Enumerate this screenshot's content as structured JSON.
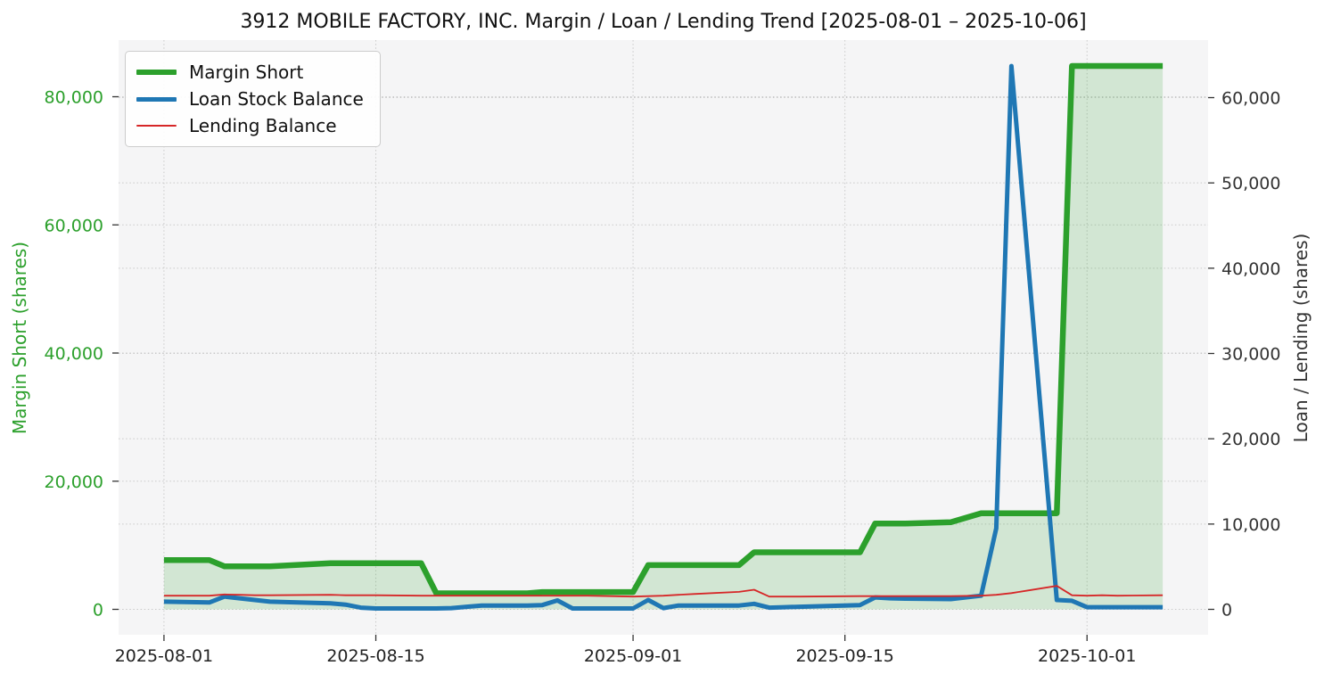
{
  "chart_data": {
    "type": "line",
    "title": "3912 MOBILE FACTORY, INC. Margin / Loan / Lending Trend [2025-08-01 – 2025-10-06]",
    "x": [
      "2025-08-01",
      "2025-08-04",
      "2025-08-05",
      "2025-08-06",
      "2025-08-07",
      "2025-08-08",
      "2025-08-12",
      "2025-08-13",
      "2025-08-14",
      "2025-08-15",
      "2025-08-18",
      "2025-08-19",
      "2025-08-20",
      "2025-08-21",
      "2025-08-22",
      "2025-08-25",
      "2025-08-26",
      "2025-08-27",
      "2025-08-28",
      "2025-08-29",
      "2025-09-01",
      "2025-09-02",
      "2025-09-03",
      "2025-09-04",
      "2025-09-05",
      "2025-09-08",
      "2025-09-09",
      "2025-09-10",
      "2025-09-11",
      "2025-09-12",
      "2025-09-16",
      "2025-09-17",
      "2025-09-18",
      "2025-09-19",
      "2025-09-22",
      "2025-09-24",
      "2025-09-25",
      "2025-09-26",
      "2025-09-29",
      "2025-09-30",
      "2025-10-01",
      "2025-10-02",
      "2025-10-03",
      "2025-10-06"
    ],
    "series": [
      {
        "name": "Margin Short",
        "axis": "left",
        "color": "#2ca02c",
        "line_width": 6.5,
        "fill": true,
        "fill_alpha": 0.17,
        "values": [
          7700,
          7700,
          6700,
          6700,
          6700,
          6700,
          7200,
          7200,
          7200,
          7200,
          7200,
          2500,
          2500,
          2500,
          2500,
          2500,
          2700,
          2700,
          2700,
          2700,
          2700,
          6900,
          6900,
          6900,
          6900,
          6900,
          8900,
          8900,
          8900,
          8900,
          8900,
          13400,
          13400,
          13400,
          13600,
          15000,
          15000,
          15000,
          15000,
          84800,
          84800,
          84800,
          84800,
          84800
        ]
      },
      {
        "name": "Loan Stock Balance",
        "axis": "right",
        "color": "#1f77b4",
        "line_width": 5,
        "fill": false,
        "values": [
          900,
          800,
          1500,
          1300,
          1100,
          900,
          700,
          550,
          200,
          100,
          100,
          100,
          150,
          300,
          450,
          450,
          500,
          1050,
          100,
          100,
          100,
          1100,
          150,
          450,
          450,
          450,
          650,
          200,
          250,
          300,
          500,
          1400,
          1300,
          1250,
          1200,
          1600,
          9500,
          63700,
          1100,
          1000,
          250,
          250,
          250,
          250
        ]
      },
      {
        "name": "Lending Balance",
        "axis": "right",
        "color": "#d62728",
        "line_width": 1.8,
        "fill": false,
        "values": [
          1600,
          1600,
          1750,
          1700,
          1650,
          1650,
          1700,
          1650,
          1650,
          1650,
          1600,
          1600,
          1600,
          1600,
          1600,
          1600,
          1600,
          1600,
          1600,
          1600,
          1500,
          1550,
          1600,
          1700,
          1800,
          2050,
          2300,
          1500,
          1500,
          1500,
          1550,
          1550,
          1550,
          1550,
          1550,
          1600,
          1700,
          1900,
          2750,
          1650,
          1600,
          1650,
          1600,
          1650
        ]
      }
    ],
    "left_axis": {
      "label": "Margin Short (shares)",
      "color": "#2ca02c",
      "ticks": [
        0,
        20000,
        40000,
        60000,
        80000
      ],
      "range": [
        -3965,
        88835
      ]
    },
    "right_axis": {
      "label": "Loan / Lending (shares)",
      "color": "#333333",
      "ticks": [
        0,
        10000,
        20000,
        30000,
        40000,
        50000,
        60000
      ],
      "range": [
        -2979,
        66743
      ]
    },
    "x_ticks": [
      "2025-08-01",
      "2025-08-15",
      "2025-09-01",
      "2025-09-15",
      "2025-10-01"
    ],
    "x_range": [
      "2025-07-29",
      "2025-10-09"
    ],
    "legend": {
      "position": "top-left"
    },
    "grid": {
      "style": "dotted",
      "color": "#c9c9c9"
    },
    "colors": {
      "plot_bg": "#f5f5f6",
      "tick": "#333333",
      "x_tick_text": "#222222",
      "title": "#111111"
    }
  }
}
